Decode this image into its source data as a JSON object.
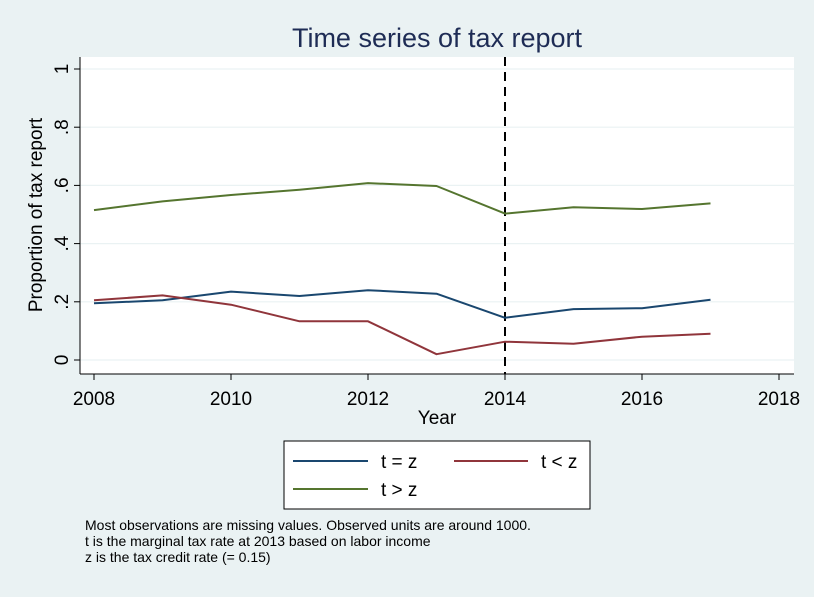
{
  "chart_data": {
    "type": "line",
    "title": "Time series of tax report",
    "xlabel": "Year",
    "ylabel": "Proportion of tax report",
    "xlim": [
      2008,
      2018
    ],
    "ylim": [
      0,
      1
    ],
    "x_ticks": [
      2008,
      2010,
      2012,
      2014,
      2016,
      2018
    ],
    "y_ticks": [
      0,
      0.2,
      0.4,
      0.6,
      0.8,
      1
    ],
    "y_tick_labels": [
      "0",
      ".2",
      ".4",
      ".6",
      ".8",
      "1"
    ],
    "grid": "horizontal",
    "reference_line": {
      "x": 2014,
      "style": "dashed"
    },
    "x": [
      2008,
      2009,
      2010,
      2011,
      2012,
      2013,
      2014,
      2015,
      2016,
      2017
    ],
    "series": [
      {
        "name": "t = z",
        "color": "#1a476f",
        "values": [
          0.195,
          0.205,
          0.235,
          0.22,
          0.24,
          0.228,
          0.145,
          0.175,
          0.178,
          0.207
        ]
      },
      {
        "name": "t < z",
        "color": "#90353b",
        "values": [
          0.205,
          0.222,
          0.19,
          0.133,
          0.133,
          0.02,
          0.063,
          0.056,
          0.08,
          0.09
        ]
      },
      {
        "name": "t > z",
        "color": "#55752f",
        "values": [
          0.515,
          0.545,
          0.567,
          0.585,
          0.608,
          0.598,
          0.503,
          0.525,
          0.519,
          0.538
        ]
      }
    ],
    "legend": {
      "placement": "bottom",
      "entries": [
        "t = z",
        "t < z",
        "t > z"
      ]
    },
    "notes": [
      "Most observations are missing values. Observed units are around 1000.",
      "t is the marginal tax rate at 2013 based on labor income",
      "z is the tax credit rate (= 0.15)"
    ]
  }
}
